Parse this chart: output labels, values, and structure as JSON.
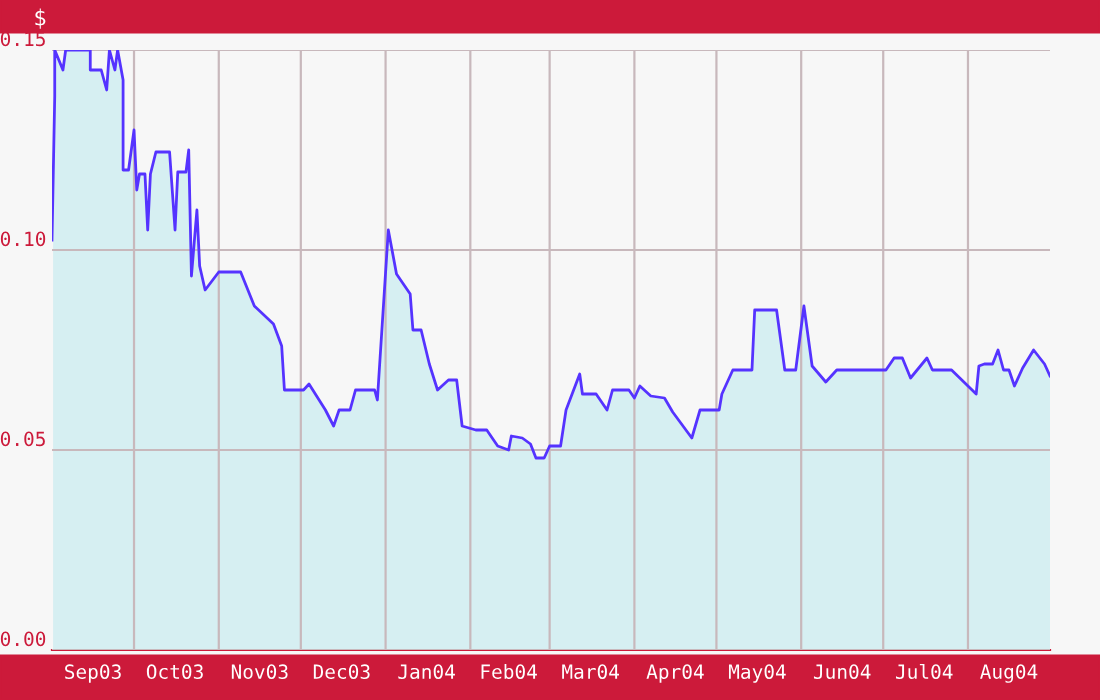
{
  "chart_data": {
    "type": "area",
    "ylabel": "$",
    "x": [
      "2003-09-01",
      "2003-09-02",
      "2003-09-02",
      "2003-09-05",
      "2003-09-06",
      "2003-09-07",
      "2003-09-15",
      "2003-09-15",
      "2003-09-19",
      "2003-09-21",
      "2003-09-22",
      "2003-09-24",
      "2003-09-25",
      "2003-09-27",
      "2003-09-27",
      "2003-09-27",
      "2003-09-29",
      "2003-10-01",
      "2003-10-02",
      "2003-10-03",
      "2003-10-05",
      "2003-10-06",
      "2003-10-07",
      "2003-10-09",
      "2003-10-14",
      "2003-10-16",
      "2003-10-17",
      "2003-10-20",
      "2003-10-21",
      "2003-10-22",
      "2003-10-24",
      "2003-10-25",
      "2003-10-27",
      "2003-11-01",
      "2003-11-09",
      "2003-11-14",
      "2003-11-21",
      "2003-11-24",
      "2003-11-25",
      "2003-12-02",
      "2003-12-04",
      "2003-12-10",
      "2003-12-13",
      "2003-12-15",
      "2003-12-19",
      "2003-12-21",
      "2003-12-28",
      "2003-12-29",
      "2004-01-02",
      "2004-01-05",
      "2004-01-10",
      "2004-01-11",
      "2004-01-14",
      "2004-01-17",
      "2004-01-20",
      "2004-01-24",
      "2004-01-27",
      "2004-01-29",
      "2004-02-03",
      "2004-02-07",
      "2004-02-11",
      "2004-02-15",
      "2004-02-16",
      "2004-02-20",
      "2004-02-23",
      "2004-02-25",
      "2004-02-28",
      "2004-03-01",
      "2004-03-05",
      "2004-03-07",
      "2004-03-12",
      "2004-03-13",
      "2004-03-18",
      "2004-03-22",
      "2004-03-24",
      "2004-03-30",
      "2004-04-01",
      "2004-04-03",
      "2004-04-07",
      "2004-04-12",
      "2004-04-15",
      "2004-04-22",
      "2004-04-25",
      "2004-05-02",
      "2004-05-03",
      "2004-05-07",
      "2004-05-14",
      "2004-05-15",
      "2004-05-23",
      "2004-05-26",
      "2004-05-30",
      "2004-06-02",
      "2004-06-05",
      "2004-06-10",
      "2004-06-14",
      "2004-07-02",
      "2004-07-05",
      "2004-07-08",
      "2004-07-11",
      "2004-07-17",
      "2004-07-19",
      "2004-07-26",
      "2004-08-01",
      "2004-08-04",
      "2004-08-05",
      "2004-08-07",
      "2004-08-10",
      "2004-08-12",
      "2004-08-14",
      "2004-08-16",
      "2004-08-18",
      "2004-08-21",
      "2004-08-25",
      "2004-08-29",
      "2004-08-31"
    ],
    "values": [
      0.1025,
      0.1385,
      0.15,
      0.145,
      0.15,
      0.15,
      0.15,
      0.145,
      0.145,
      0.14,
      0.15,
      0.145,
      0.15,
      0.1425,
      0.1275,
      0.12,
      0.12,
      0.13,
      0.115,
      0.119,
      0.119,
      0.105,
      0.119,
      0.1245,
      0.1245,
      0.105,
      0.1195,
      0.1195,
      0.125,
      0.0935,
      0.11,
      0.096,
      0.09,
      0.0945,
      0.0945,
      0.086,
      0.0815,
      0.076,
      0.065,
      0.065,
      0.0665,
      0.06,
      0.056,
      0.06,
      0.06,
      0.065,
      0.065,
      0.0625,
      0.105,
      0.094,
      0.089,
      0.08,
      0.08,
      0.0715,
      0.065,
      0.0675,
      0.0675,
      0.056,
      0.055,
      0.055,
      0.051,
      0.05,
      0.0535,
      0.053,
      0.0515,
      0.048,
      0.048,
      0.051,
      0.051,
      0.06,
      0.069,
      0.064,
      0.064,
      0.06,
      0.065,
      0.065,
      0.063,
      0.066,
      0.0635,
      0.063,
      0.0595,
      0.053,
      0.06,
      0.06,
      0.064,
      0.07,
      0.07,
      0.085,
      0.085,
      0.07,
      0.07,
      0.086,
      0.071,
      0.067,
      0.07,
      0.07,
      0.073,
      0.073,
      0.068,
      0.073,
      0.07,
      0.07,
      0.066,
      0.064,
      0.071,
      0.0715,
      0.0715,
      0.075,
      0.07,
      0.07,
      0.066,
      0.0705,
      0.075,
      0.0715,
      0.0685
    ],
    "color": "#5533ff",
    "xlim": [
      "2003-09-01",
      "2004-08-31"
    ],
    "ylim": [
      0,
      0.15
    ],
    "yticks": [
      {
        "value": 0,
        "label": "0.00"
      },
      {
        "value": 0.05,
        "label": "0.05"
      },
      {
        "value": 0.1,
        "label": "0.10"
      },
      {
        "value": 0.15,
        "label": "0.15"
      }
    ],
    "xticks": [
      {
        "value": "2003-09-16",
        "label": "Sep03"
      },
      {
        "value": "2003-10-01",
        "label": null
      },
      {
        "value": "2003-10-16",
        "label": "Oct03"
      },
      {
        "value": "2003-11-01",
        "label": null
      },
      {
        "value": "2003-11-16",
        "label": "Nov03"
      },
      {
        "value": "2003-12-01",
        "label": null
      },
      {
        "value": "2003-12-16",
        "label": "Dec03"
      },
      {
        "value": "2004-01-01",
        "label": null
      },
      {
        "value": "2004-01-16",
        "label": "Jan04"
      },
      {
        "value": "2004-02-01",
        "label": null
      },
      {
        "value": "2004-02-15",
        "label": "Feb04"
      },
      {
        "value": "2004-03-01",
        "label": null
      },
      {
        "value": "2004-03-16",
        "label": "Mar04"
      },
      {
        "value": "2004-04-01",
        "label": null
      },
      {
        "value": "2004-04-16",
        "label": "Apr04"
      },
      {
        "value": "2004-05-01",
        "label": null
      },
      {
        "value": "2004-05-16",
        "label": "May04"
      },
      {
        "value": "2004-06-01",
        "label": null
      },
      {
        "value": "2004-06-16",
        "label": "Jun04"
      },
      {
        "value": "2004-07-01",
        "label": null
      },
      {
        "value": "2004-07-16",
        "label": "Jul04"
      },
      {
        "value": "2004-08-01",
        "label": null
      },
      {
        "value": "2004-08-16",
        "label": "Aug04"
      }
    ],
    "grid": true
  }
}
